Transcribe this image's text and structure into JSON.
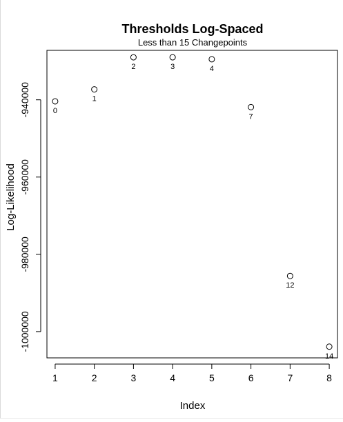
{
  "chart_data": {
    "type": "scatter",
    "title": "Thresholds Log-Spaced",
    "subtitle": "Less than 15 Changepoints",
    "xlabel": "Index",
    "ylabel": "Log-Likelihood",
    "x_ticks": [
      1,
      2,
      3,
      4,
      5,
      6,
      7,
      8
    ],
    "x_tick_labels": [
      "1",
      "2",
      "3",
      "4",
      "5",
      "6",
      "7",
      "8"
    ],
    "y_ticks": [
      -940000,
      -960000,
      -980000,
      -1000000
    ],
    "y_tick_labels": [
      "-940000",
      "-960000",
      "-980000",
      "-1000000"
    ],
    "xlim": [
      0.79,
      8.21
    ],
    "ylim": [
      -1006800,
      -927200
    ],
    "grid": false,
    "marker": "open-circle",
    "points": [
      {
        "x": 1,
        "y": -940400,
        "label": "0"
      },
      {
        "x": 2,
        "y": -937300,
        "label": "1"
      },
      {
        "x": 3,
        "y": -929000,
        "label": "2"
      },
      {
        "x": 4,
        "y": -929000,
        "label": "3"
      },
      {
        "x": 5,
        "y": -929500,
        "label": "4"
      },
      {
        "x": 6,
        "y": -941900,
        "label": "7"
      },
      {
        "x": 7,
        "y": -985600,
        "label": "12"
      },
      {
        "x": 8,
        "y": -1003900,
        "label": "14"
      }
    ]
  }
}
